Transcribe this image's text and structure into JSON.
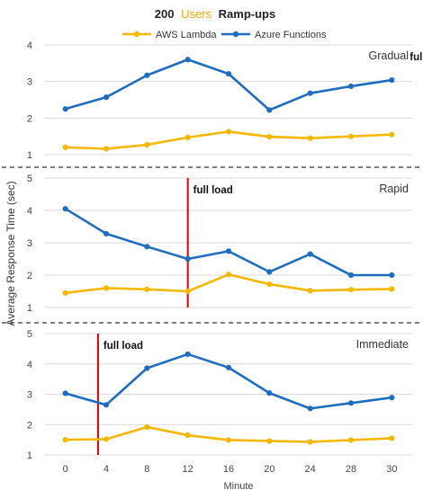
{
  "chart_data": {
    "type": "line",
    "title_prefix": "200",
    "title_highlight": "Users",
    "title_suffix": "Ramp-ups",
    "ylabel": "Average Response Time (sec)",
    "xlabel": "Minute",
    "categories": [
      "0",
      "4",
      "8",
      "12",
      "16",
      "20",
      "24",
      "28",
      "30"
    ],
    "ylim": [
      1,
      4
    ],
    "legend": {
      "placement": "top"
    },
    "colors": {
      "aws": "#F5B800",
      "azure": "#1F6DBF",
      "marker": "#E00000",
      "title_highlight": "#F5A800"
    },
    "panels": [
      {
        "name": "Gradual",
        "annotation": "full load",
        "full_load_x": 9.5,
        "ylim": [
          1,
          4
        ],
        "series": [
          {
            "name": "AWS Lambda",
            "values": [
              1.2,
              1.16,
              1.27,
              1.47,
              1.63,
              1.49,
              1.45,
              1.5,
              1.55
            ]
          },
          {
            "name": "Azure Functions",
            "values": [
              2.25,
              2.57,
              3.17,
              3.6,
              3.21,
              2.22,
              2.68,
              2.87,
              3.04
            ]
          }
        ]
      },
      {
        "name": "Rapid",
        "annotation": "full load",
        "full_load_x": 3,
        "ylim": [
          1,
          5
        ],
        "series": [
          {
            "name": "AWS Lambda",
            "values": [
              1.45,
              1.6,
              1.56,
              1.5,
              2.02,
              1.72,
              1.52,
              1.55,
              1.57
            ]
          },
          {
            "name": "Azure Functions",
            "values": [
              4.05,
              3.28,
              2.88,
              2.5,
              2.74,
              2.1,
              2.65,
              2.0,
              2.0
            ]
          }
        ]
      },
      {
        "name": "Immediate",
        "annotation": "full load",
        "full_load_x": 0.8,
        "ylim": [
          1,
          5
        ],
        "series": [
          {
            "name": "AWS Lambda",
            "values": [
              1.5,
              1.52,
              1.92,
              1.65,
              1.49,
              1.46,
              1.43,
              1.49,
              1.55
            ]
          },
          {
            "name": "Azure Functions",
            "values": [
              3.03,
              2.65,
              3.86,
              4.32,
              3.88,
              3.04,
              2.53,
              2.71,
              2.89
            ]
          }
        ]
      }
    ]
  }
}
